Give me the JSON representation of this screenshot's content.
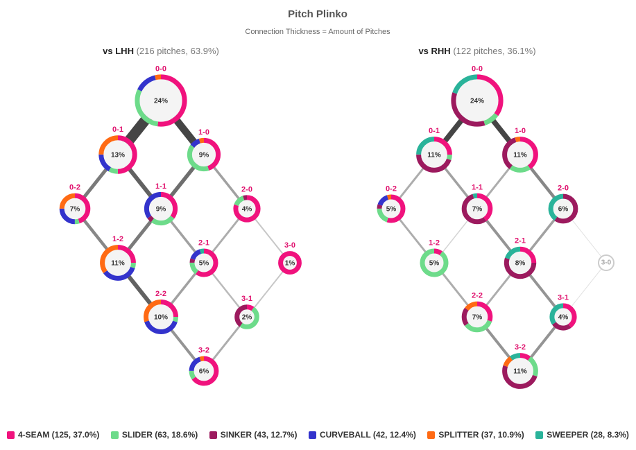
{
  "chart_data": {
    "type": "plinko",
    "title": "Pitch Plinko",
    "subtitle": "Connection Thickness = Amount of Pitches",
    "series": [
      {
        "name": "4-SEAM (125, 37.0%)",
        "color": "#f0127d"
      },
      {
        "name": "SLIDER (63, 18.6%)",
        "color": "#6ddb8a"
      },
      {
        "name": "SINKER (43, 12.7%)",
        "color": "#9c1a5e"
      },
      {
        "name": "CURVEBALL (42, 12.4%)",
        "color": "#3333cc"
      },
      {
        "name": "SPLITTER (37, 10.9%)",
        "color": "#ff6a13"
      },
      {
        "name": "SWEEPER (28, 8.3%)",
        "color": "#2ab39a"
      }
    ],
    "panels": [
      {
        "title": "vs LHH",
        "subtitle": "(216 pitches, 63.9%)",
        "nodes": [
          {
            "label": "0-0",
            "value": 24,
            "value_label": "24%",
            "mix": [
              52,
              30,
              0,
              14,
              4,
              0
            ]
          },
          {
            "label": "0-1",
            "value": 13,
            "value_label": "13%",
            "mix": [
              50,
              8,
              0,
              17,
              25,
              0
            ]
          },
          {
            "label": "1-0",
            "value": 9,
            "value_label": "9%",
            "mix": [
              45,
              40,
              0,
              10,
              5,
              0
            ]
          },
          {
            "label": "0-2",
            "value": 7,
            "value_label": "7%",
            "mix": [
              45,
              5,
              0,
              25,
              25,
              0
            ]
          },
          {
            "label": "1-1",
            "value": 9,
            "value_label": "9%",
            "mix": [
              35,
              25,
              5,
              35,
              0,
              0
            ]
          },
          {
            "label": "2-0",
            "value": 4,
            "value_label": "4%",
            "mix": [
              80,
              15,
              5,
              0,
              0,
              0
            ]
          },
          {
            "label": "1-2",
            "value": 11,
            "value_label": "11%",
            "mix": [
              25,
              5,
              0,
              35,
              35,
              0
            ]
          },
          {
            "label": "2-1",
            "value": 5,
            "value_label": "5%",
            "mix": [
              60,
              15,
              5,
              15,
              0,
              5
            ]
          },
          {
            "label": "3-0",
            "value": 1,
            "value_label": "1%",
            "mix": [
              100,
              0,
              0,
              0,
              0,
              0
            ]
          },
          {
            "label": "2-2",
            "value": 10,
            "value_label": "10%",
            "mix": [
              25,
              5,
              0,
              40,
              30,
              0
            ]
          },
          {
            "label": "3-1",
            "value": 2,
            "value_label": "2%",
            "mix": [
              10,
              50,
              40,
              0,
              0,
              0
            ]
          },
          {
            "label": "3-2",
            "value": 6,
            "value_label": "6%",
            "mix": [
              65,
              10,
              0,
              20,
              5,
              0
            ]
          }
        ],
        "edges": [
          {
            "from": "0-0",
            "to": "0-1",
            "value": 28
          },
          {
            "from": "0-0",
            "to": "1-0",
            "value": 19
          },
          {
            "from": "0-1",
            "to": "0-2",
            "value": 8
          },
          {
            "from": "0-1",
            "to": "1-1",
            "value": 10
          },
          {
            "from": "1-0",
            "to": "1-1",
            "value": 9
          },
          {
            "from": "1-0",
            "to": "2-0",
            "value": 5
          },
          {
            "from": "0-2",
            "to": "1-2",
            "value": 7
          },
          {
            "from": "1-1",
            "to": "1-2",
            "value": 8
          },
          {
            "from": "1-1",
            "to": "2-1",
            "value": 5
          },
          {
            "from": "2-0",
            "to": "2-1",
            "value": 4
          },
          {
            "from": "2-0",
            "to": "3-0",
            "value": 2
          },
          {
            "from": "1-2",
            "to": "2-2",
            "value": 10
          },
          {
            "from": "2-1",
            "to": "2-2",
            "value": 5
          },
          {
            "from": "2-1",
            "to": "3-1",
            "value": 3
          },
          {
            "from": "3-0",
            "to": "3-1",
            "value": 2
          },
          {
            "from": "2-2",
            "to": "3-2",
            "value": 6
          },
          {
            "from": "3-1",
            "to": "3-2",
            "value": 4
          }
        ]
      },
      {
        "title": "vs RHH",
        "subtitle": "(122 pitches, 36.1%)",
        "nodes": [
          {
            "label": "0-0",
            "value": 24,
            "value_label": "24%",
            "mix": [
              35,
              10,
              35,
              0,
              0,
              20
            ]
          },
          {
            "label": "0-1",
            "value": 11,
            "value_label": "11%",
            "mix": [
              25,
              5,
              45,
              0,
              0,
              25
            ]
          },
          {
            "label": "1-0",
            "value": 11,
            "value_label": "11%",
            "mix": [
              40,
              20,
              35,
              0,
              5,
              0
            ]
          },
          {
            "label": "0-2",
            "value": 5,
            "value_label": "5%",
            "mix": [
              55,
              20,
              5,
              15,
              5,
              0
            ]
          },
          {
            "label": "1-1",
            "value": 7,
            "value_label": "7%",
            "mix": [
              40,
              0,
              55,
              0,
              0,
              5
            ]
          },
          {
            "label": "2-0",
            "value": 6,
            "value_label": "6%",
            "mix": [
              0,
              0,
              60,
              0,
              0,
              40
            ]
          },
          {
            "label": "1-2",
            "value": 5,
            "value_label": "5%",
            "mix": [
              10,
              90,
              0,
              0,
              0,
              0
            ]
          },
          {
            "label": "2-1",
            "value": 8,
            "value_label": "8%",
            "mix": [
              25,
              0,
              55,
              0,
              0,
              20
            ]
          },
          {
            "label": "3-0",
            "value": null,
            "mix": [
              0,
              0,
              0,
              0,
              0,
              0
            ]
          },
          {
            "label": "2-2",
            "value": 7,
            "value_label": "7%",
            "mix": [
              30,
              35,
              20,
              0,
              15,
              0
            ]
          },
          {
            "label": "3-1",
            "value": 4,
            "value_label": "4%",
            "mix": [
              40,
              0,
              25,
              0,
              0,
              35
            ]
          },
          {
            "label": "3-2",
            "value": 11,
            "value_label": "11%",
            "mix": [
              10,
              20,
              50,
              0,
              10,
              10
            ]
          }
        ],
        "edges": [
          {
            "from": "0-0",
            "to": "0-1",
            "value": 13
          },
          {
            "from": "0-0",
            "to": "1-0",
            "value": 13
          },
          {
            "from": "0-1",
            "to": "0-2",
            "value": 4
          },
          {
            "from": "0-1",
            "to": "1-1",
            "value": 5
          },
          {
            "from": "1-0",
            "to": "1-1",
            "value": 4
          },
          {
            "from": "1-0",
            "to": "2-0",
            "value": 7
          },
          {
            "from": "0-2",
            "to": "1-2",
            "value": 4
          },
          {
            "from": "1-1",
            "to": "1-2",
            "value": 1
          },
          {
            "from": "1-1",
            "to": "2-1",
            "value": 6
          },
          {
            "from": "2-0",
            "to": "2-1",
            "value": 5
          },
          {
            "from": "2-0",
            "to": "3-0",
            "value": 0
          },
          {
            "from": "1-2",
            "to": "2-2",
            "value": 4
          },
          {
            "from": "2-1",
            "to": "2-2",
            "value": 4
          },
          {
            "from": "2-1",
            "to": "3-1",
            "value": 6
          },
          {
            "from": "3-0",
            "to": "3-1",
            "value": 0
          },
          {
            "from": "2-2",
            "to": "3-2",
            "value": 6
          },
          {
            "from": "3-1",
            "to": "3-2",
            "value": 6
          }
        ]
      }
    ]
  }
}
